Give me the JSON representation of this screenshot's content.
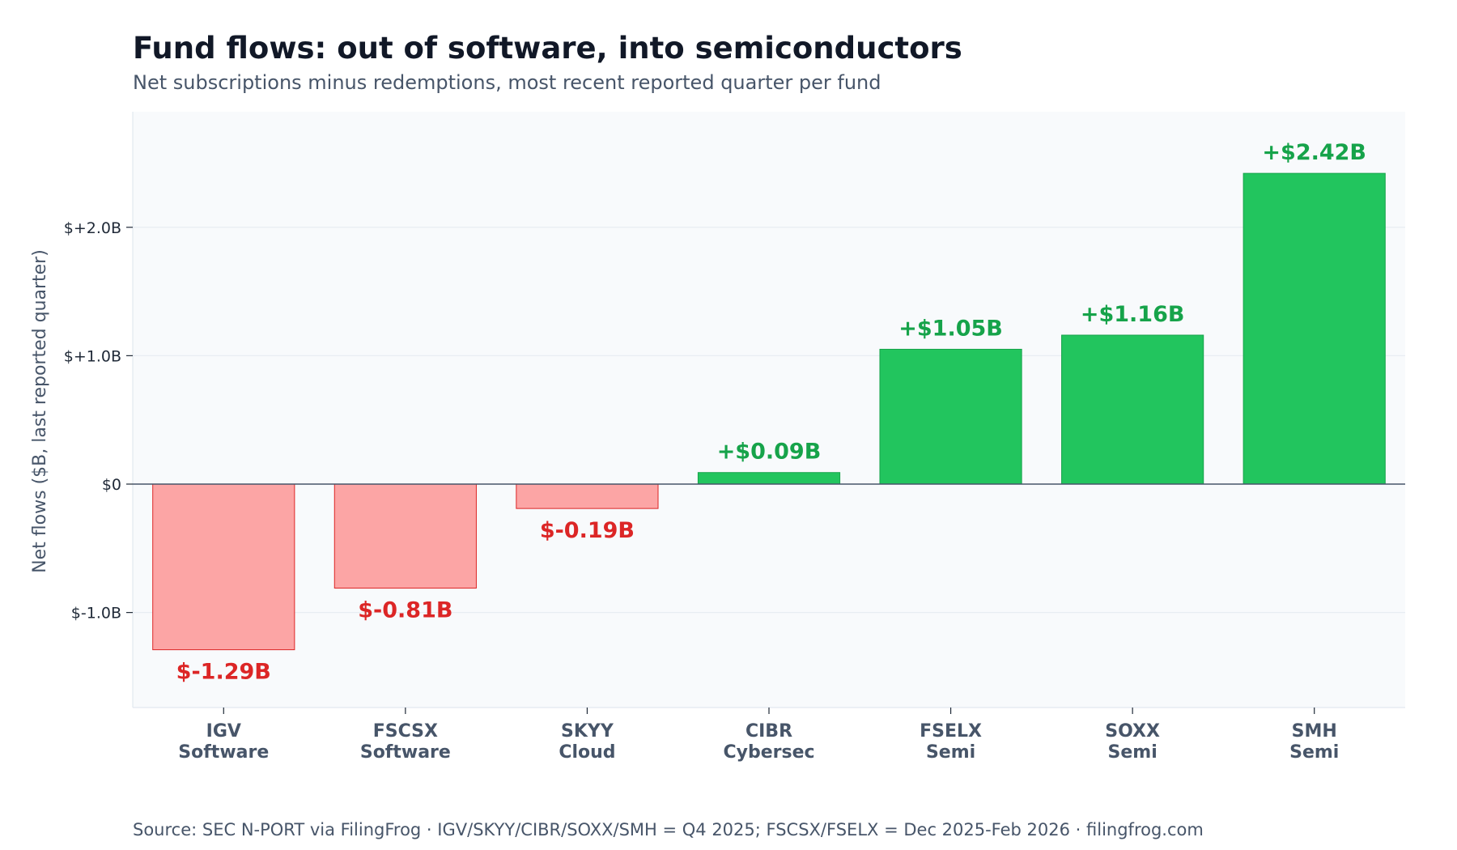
{
  "title": "Fund flows: out of software, into semiconductors",
  "subtitle": "Net subscriptions minus redemptions, most recent reported quarter per fund",
  "source": "Source: SEC N-PORT via FilingFrog  ·  IGV/SKYY/CIBR/SOXX/SMH = Q4 2025; FSCSX/FSELX = Dec 2025-Feb 2026  ·  filingfrog.com",
  "colors": {
    "positive_fill": "#22c55e",
    "positive_edge": "#16a34a",
    "positive_label": "#16a34a",
    "negative_fill": "#fca5a5",
    "negative_edge": "#dc2626",
    "negative_label": "#dc2626",
    "plot_background": "#f8fafc"
  },
  "chart_data": {
    "type": "bar",
    "title": "Fund flows: out of software, into semiconductors",
    "subtitle": "Net subscriptions minus redemptions, most recent reported quarter per fund",
    "xlabel": "",
    "ylabel": "Net flows ($B, last reported quarter)",
    "categories": [
      {
        "ticker": "IGV",
        "sector": "Software"
      },
      {
        "ticker": "FSCSX",
        "sector": "Software"
      },
      {
        "ticker": "SKYY",
        "sector": "Cloud"
      },
      {
        "ticker": "CIBR",
        "sector": "Cybersec"
      },
      {
        "ticker": "FSELX",
        "sector": "Semi"
      },
      {
        "ticker": "SOXX",
        "sector": "Semi"
      },
      {
        "ticker": "SMH",
        "sector": "Semi"
      }
    ],
    "values": [
      -1.29,
      -0.81,
      -0.19,
      0.09,
      1.05,
      1.16,
      2.42
    ],
    "value_labels": [
      "$-1.29B",
      "$-0.81B",
      "$-0.19B",
      "+$0.09B",
      "+$1.05B",
      "+$1.16B",
      "+$2.42B"
    ],
    "ylim": [
      -1.74,
      2.9
    ],
    "yticks": [
      -1.0,
      0,
      1.0,
      2.0
    ],
    "ytick_labels": [
      "$-1.0B",
      "$0",
      "$+1.0B",
      "$+2.0B"
    ],
    "grid": true
  }
}
